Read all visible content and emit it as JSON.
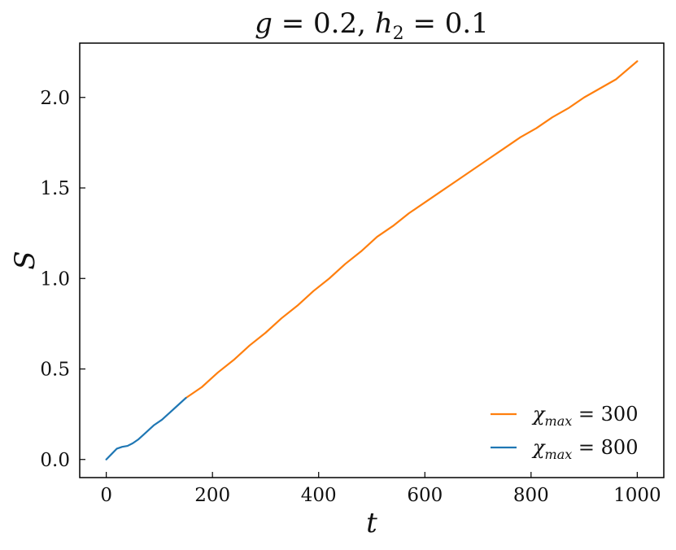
{
  "chart_data": {
    "type": "line",
    "title": "g = 0.2, h₂ = 0.1",
    "title_parts": {
      "a": "g",
      "eq1": " = 0.2, ",
      "b": "h",
      "b_sub": "2",
      "eq2": " = 0.1"
    },
    "xlabel": "t",
    "ylabel": "S",
    "xlim": [
      -50,
      1050
    ],
    "ylim": [
      -0.1,
      2.3
    ],
    "xticks": [
      0,
      200,
      400,
      600,
      800,
      1000
    ],
    "xtick_labels": [
      "0",
      "200",
      "400",
      "600",
      "800",
      "1000"
    ],
    "yticks": [
      0.0,
      0.5,
      1.0,
      1.5,
      2.0
    ],
    "ytick_labels": [
      "0.0",
      "0.5",
      "1.0",
      "1.5",
      "2.0"
    ],
    "grid": false,
    "legend_position": "bottom-right",
    "series": [
      {
        "name": "χmax = 300",
        "legend": {
          "symbol": "χ",
          "sub": "max",
          "rest": " = 300"
        },
        "color": "#ff7f0e",
        "x": [
          150,
          180,
          210,
          240,
          270,
          300,
          330,
          360,
          390,
          420,
          450,
          480,
          510,
          540,
          570,
          600,
          630,
          660,
          690,
          720,
          750,
          780,
          810,
          840,
          870,
          900,
          930,
          960,
          1000
        ],
        "y": [
          0.34,
          0.4,
          0.48,
          0.55,
          0.63,
          0.7,
          0.78,
          0.85,
          0.93,
          1.0,
          1.08,
          1.15,
          1.23,
          1.29,
          1.36,
          1.42,
          1.48,
          1.54,
          1.6,
          1.66,
          1.72,
          1.78,
          1.83,
          1.89,
          1.94,
          2.0,
          2.05,
          2.1,
          2.2
        ]
      },
      {
        "name": "χmax = 800",
        "legend": {
          "symbol": "χ",
          "sub": "max",
          "rest": " = 800"
        },
        "color": "#1f77b4",
        "x": [
          0,
          10,
          20,
          30,
          40,
          50,
          60,
          75,
          90,
          105,
          120,
          135,
          150
        ],
        "y": [
          0.0,
          0.03,
          0.06,
          0.07,
          0.075,
          0.09,
          0.11,
          0.15,
          0.19,
          0.22,
          0.26,
          0.3,
          0.34
        ]
      }
    ]
  }
}
